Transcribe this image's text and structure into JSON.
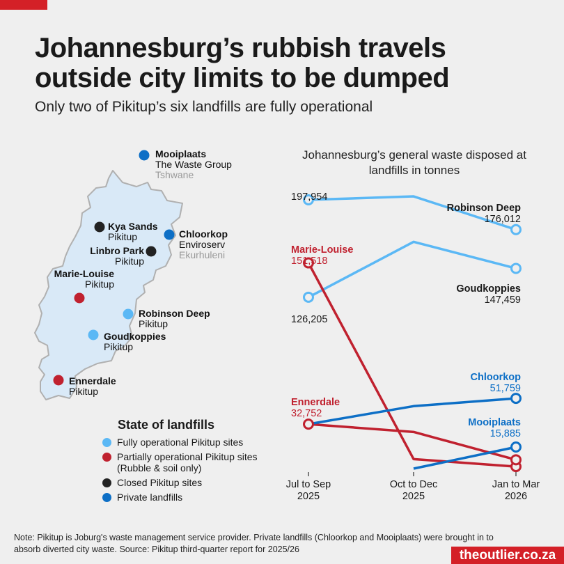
{
  "header": {
    "title": "Johannesburg’s rubbish travels outside city limits to be dumped",
    "subtitle": "Only two of Pikitup’s six landfills are fully operational"
  },
  "colors": {
    "fully_operational": "#5bb8f5",
    "partially_operational": "#c0212f",
    "closed": "#222222",
    "private": "#0d6fc6",
    "map_fill": "#d9e9f7",
    "map_border": "#b0b0b0",
    "brand": "#d42027"
  },
  "map": {
    "sites": [
      {
        "name": "Mooiplaats",
        "operator": "The Waste Group",
        "region": "Tshwane",
        "status": "private"
      },
      {
        "name": "Kya Sands",
        "operator": "Pikitup",
        "region": "",
        "status": "closed"
      },
      {
        "name": "Chloorkop",
        "operator": "Enviroserv",
        "region": "Ekurhuleni",
        "status": "private"
      },
      {
        "name": "Linbro Park",
        "operator": "Pikitup",
        "region": "",
        "status": "closed"
      },
      {
        "name": "Marie-Louise",
        "operator": "Pikitup",
        "region": "",
        "status": "partially_operational"
      },
      {
        "name": "Robinson Deep",
        "operator": "Pikitup",
        "region": "",
        "status": "fully_operational"
      },
      {
        "name": "Goudkoppies",
        "operator": "Pikitup",
        "region": "",
        "status": "fully_operational"
      },
      {
        "name": "Ennerdale",
        "operator": "Pikitup",
        "region": "",
        "status": "partially_operational"
      }
    ]
  },
  "legend": {
    "title": "State of landfills",
    "items": [
      {
        "label": "Fully operational Pikitup sites",
        "status": "fully_operational"
      },
      {
        "label": "Partially operational Pikitup sites (Rubble & soil only)",
        "status": "partially_operational"
      },
      {
        "label": "Closed Pikitup sites",
        "status": "closed"
      },
      {
        "label": "Private landfills",
        "status": "private"
      }
    ]
  },
  "chart_data": {
    "type": "line",
    "title": "Johannesburg’s general waste disposed at landfills in tonnes",
    "categories": [
      "Jul to Sep 2025",
      "Oct to Dec 2025",
      "Jan to Mar 2026"
    ],
    "ylim": [
      0,
      200000
    ],
    "series": [
      {
        "name": "Robinson Deep",
        "status": "fully_operational",
        "values": [
          197954,
          200500,
          176012
        ],
        "start_label": "197,954",
        "end_label": "176,012"
      },
      {
        "name": "Goudkoppies",
        "status": "fully_operational",
        "values": [
          126205,
          167000,
          147459
        ],
        "start_label": "126,205",
        "end_label": "147,459"
      },
      {
        "name": "Marie-Louise",
        "status": "partially_operational",
        "values": [
          151518,
          7000,
          1500
        ],
        "start_label": "151,518",
        "end_label": ""
      },
      {
        "name": "Ennerdale",
        "status": "partially_operational",
        "values": [
          32752,
          27000,
          6500
        ],
        "start_label": "32,752",
        "end_label": ""
      },
      {
        "name": "Chloorkop",
        "status": "private",
        "values": [
          32752,
          46000,
          51759
        ],
        "start_label": "",
        "end_label": "51,759"
      },
      {
        "name": "Mooiplaats",
        "status": "private",
        "values": [
          null,
          0,
          15885
        ],
        "start_label": "",
        "end_label": "15,885"
      }
    ]
  },
  "footer": {
    "note": "Note: Pikitup is Joburg's waste management service provider. Private landfills (Chloorkop and Mooiplaats) were brought in to absorb diverted city waste. Source: Pikitup third-quarter report for 2025/26",
    "brand": "theoutlier.co.za"
  }
}
